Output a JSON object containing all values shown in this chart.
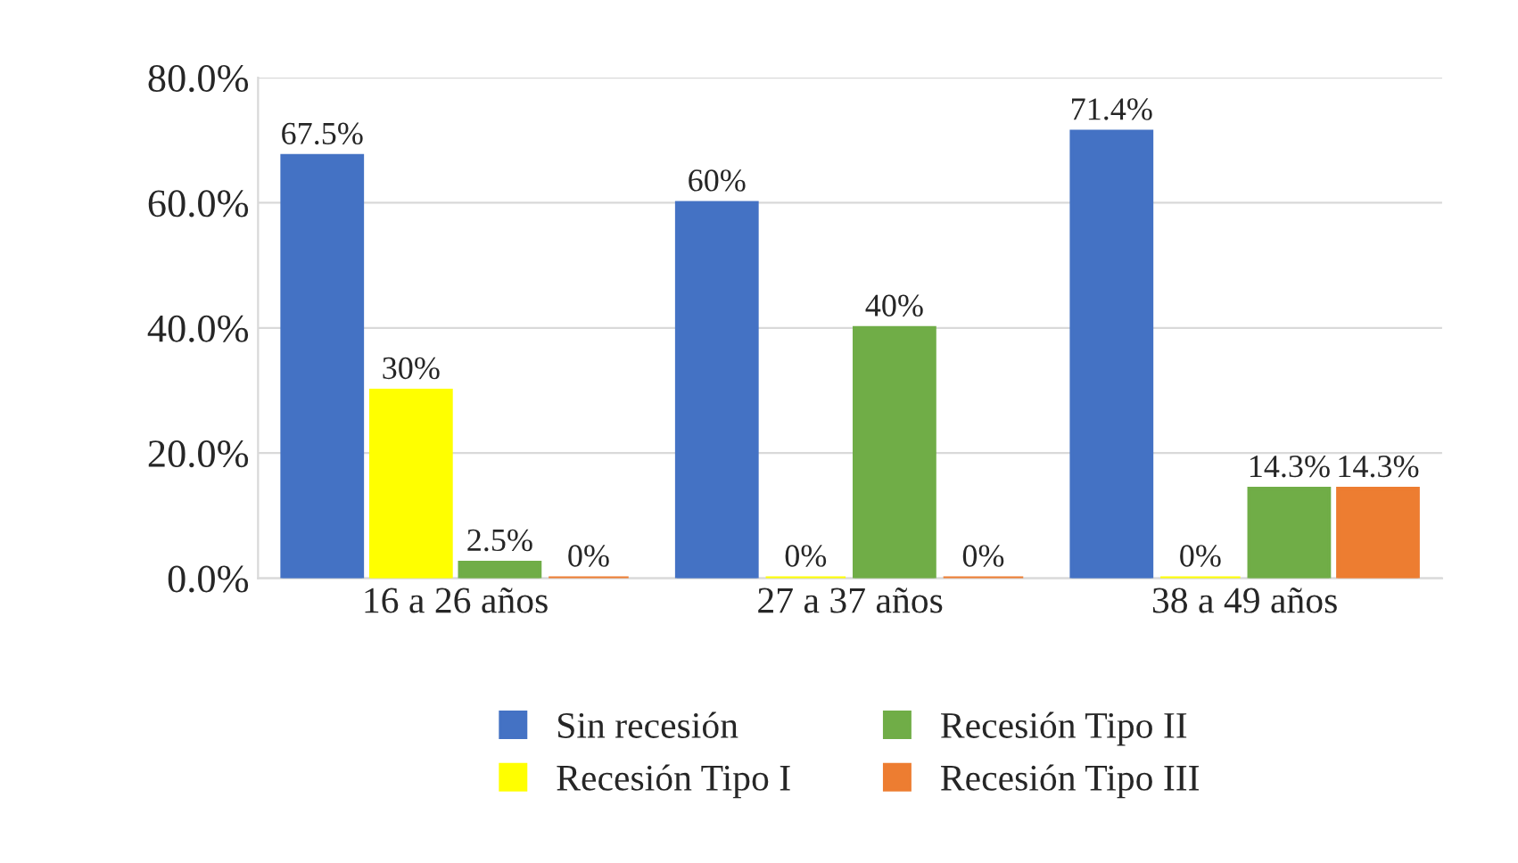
{
  "chart_data": {
    "type": "bar",
    "categories": [
      "16 a 26 años",
      "27 a 37 años",
      "38 a 49 años"
    ],
    "series": [
      {
        "name": "Sin recesión",
        "color": "#4472c4",
        "values": [
          67.5,
          60,
          71.4
        ],
        "value_labels": [
          "67.5%",
          "60%",
          "71.4%"
        ]
      },
      {
        "name": "Recesión Tipo I",
        "color": "#ffff00",
        "values": [
          30,
          0,
          0
        ],
        "value_labels": [
          "30%",
          "0%",
          "0%"
        ]
      },
      {
        "name": "Recesión Tipo II",
        "color": "#70ad47",
        "values": [
          2.5,
          40,
          14.3
        ],
        "value_labels": [
          "2.5%",
          "40%",
          "14.3%"
        ]
      },
      {
        "name": "Recesión Tipo III",
        "color": "#ed7d31",
        "values": [
          0,
          0,
          14.3
        ],
        "value_labels": [
          "0%",
          "0%",
          "14.3%"
        ]
      }
    ],
    "ylim": [
      0,
      80
    ],
    "yticks": [
      {
        "value": 0,
        "label": "0.0%"
      },
      {
        "value": 20,
        "label": "20.0%"
      },
      {
        "value": 40,
        "label": "40.0%"
      },
      {
        "value": 60,
        "label": "60.0%"
      },
      {
        "value": 80,
        "label": "80.0%"
      }
    ],
    "grid": "y",
    "legend": "bottom"
  }
}
